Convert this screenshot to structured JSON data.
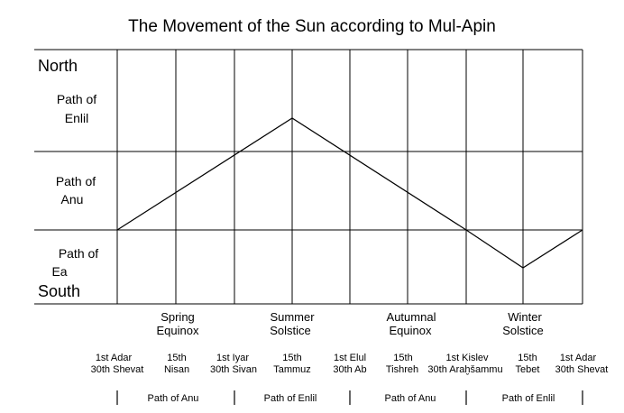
{
  "title": "The Movement of the Sun according to Mul-Apin",
  "directions": {
    "north": "North",
    "south": "South"
  },
  "zones": [
    {
      "line1": "Path of",
      "line2": "Enlil"
    },
    {
      "line1": "Path of",
      "line2": "Anu"
    },
    {
      "line1": "Path of",
      "line2": "Ea"
    }
  ],
  "seasons": [
    {
      "line1": "Spring",
      "line2": "Equinox"
    },
    {
      "line1": "Summer",
      "line2": "Solstice"
    },
    {
      "line1": "Autumnal",
      "line2": "Equinox"
    },
    {
      "line1": "Winter",
      "line2": "Solstice"
    }
  ],
  "dates": [
    {
      "line1": "1st Adar",
      "line2": "30th Shevat"
    },
    {
      "line1": "15th",
      "line2": "Nisan"
    },
    {
      "line1": "1st Iyar",
      "line2": "30th Sivan"
    },
    {
      "line1": "15th",
      "line2": "Tammuz"
    },
    {
      "line1": "1st Elul",
      "line2": "30th Ab"
    },
    {
      "line1": "15th",
      "line2": "Tishreh"
    },
    {
      "line1": "1st Kislev",
      "line2": "30th Araḫšammu"
    },
    {
      "line1": "15th",
      "line2": "Tebet"
    },
    {
      "line1": "1st Adar",
      "line2": "30th Shevat"
    }
  ],
  "bottom_paths": [
    "Path of Anu",
    "Path of Enlil",
    "Path of Anu",
    "Path of Enlil"
  ],
  "sun_path_points": [
    {
      "date": "1st Adar / 30th Shevat",
      "position": "boundary Anu/Ea"
    },
    {
      "date": "15th Tammuz",
      "position": "within Path of Enlil"
    },
    {
      "date": "1st Kislev / 30th Araḫšammu",
      "position": "boundary Anu/Ea"
    },
    {
      "date": "15th Tebet",
      "position": "within Path of Ea"
    },
    {
      "date": "1st Adar / 30th Shevat",
      "position": "boundary Anu/Ea"
    }
  ]
}
